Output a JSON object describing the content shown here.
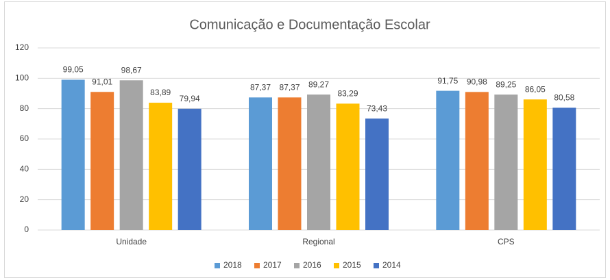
{
  "chart_data": {
    "type": "bar",
    "title": "Comunicação e Documentação Escolar",
    "categories": [
      "Unidade",
      "Regional",
      "CPS"
    ],
    "series": [
      {
        "name": "2018",
        "color": "#5b9bd5",
        "values": [
          99.05,
          87.37,
          91.75
        ],
        "value_labels": [
          "99,05",
          "87,37",
          "91,75"
        ]
      },
      {
        "name": "2017",
        "color": "#ed7d31",
        "values": [
          91.01,
          87.37,
          90.98
        ],
        "value_labels": [
          "91,01",
          "87,37",
          "90,98"
        ]
      },
      {
        "name": "2016",
        "color": "#a5a5a5",
        "values": [
          98.67,
          89.27,
          89.25
        ],
        "value_labels": [
          "98,67",
          "89,27",
          "89,25"
        ]
      },
      {
        "name": "2015",
        "color": "#ffc000",
        "values": [
          83.89,
          83.29,
          86.05
        ],
        "value_labels": [
          "83,89",
          "83,29",
          "86,05"
        ]
      },
      {
        "name": "2014",
        "color": "#4472c4",
        "values": [
          79.94,
          73.43,
          80.58
        ],
        "value_labels": [
          "79,94",
          "73,43",
          "80,58"
        ]
      }
    ],
    "ylim": [
      0,
      120
    ],
    "yticks": [
      0,
      20,
      40,
      60,
      80,
      100,
      120
    ],
    "grid": true,
    "legend": "bottom"
  }
}
